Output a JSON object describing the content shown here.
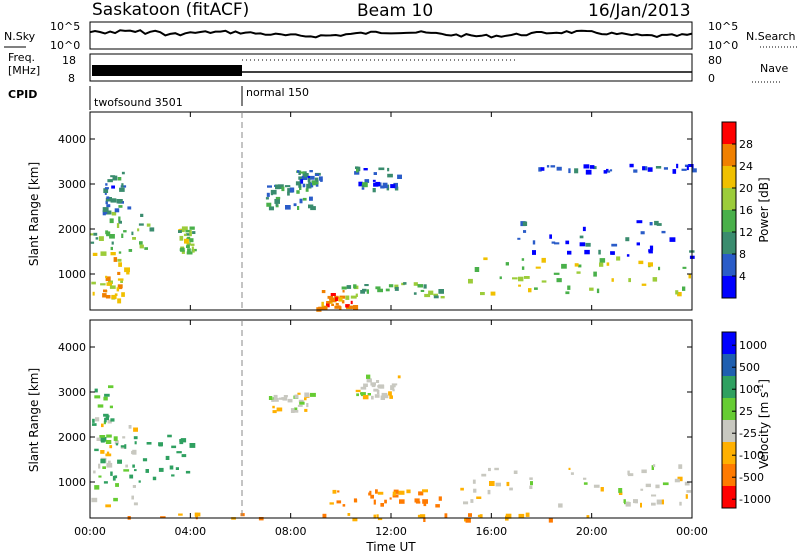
{
  "header": {
    "station": "Saskatoon (fitACF)",
    "beam": "Beam 10",
    "date": "16/Jan/2013"
  },
  "top_panels": {
    "nsky_label": "N.Sky",
    "nsearch_label": "N.Search",
    "nsky_ticks": [
      "10^5",
      "10^0"
    ],
    "nsearch_ticks": [
      "10^5",
      "10^0"
    ],
    "freq_label": "Freq.",
    "freq_unit": "[MHz]",
    "freq_ticks": [
      "18",
      "8"
    ],
    "nave_label": "Nave",
    "nave_ticks": [
      "80",
      "0"
    ],
    "cpid_label": "CPID",
    "cpid_segments": [
      {
        "label": "twofsound 3501",
        "start_hour": 0
      },
      {
        "label": "normal 150",
        "start_hour": 6
      }
    ]
  },
  "colors": {
    "power_scale": [
      "#0000ff",
      "#2a5cc8",
      "#3a8c6e",
      "#49b04a",
      "#9ccc3a",
      "#f0c000",
      "#f08000",
      "#ff0000"
    ],
    "velocity_scale": [
      "#0000ff",
      "#1f5fb0",
      "#2fa060",
      "#66cc33",
      "#c8c8c0",
      "#ffb000",
      "#ff7a00",
      "#ff0000"
    ],
    "ground_scatter": "#c8c8c0"
  },
  "chart_data": [
    {
      "type": "heatmap",
      "name": "power-panel",
      "ylabel": "Slant Range [km]",
      "ylim": [
        200,
        4600
      ],
      "yticks": [
        1000,
        2000,
        3000,
        4000
      ],
      "colorbar": {
        "label": "Power [dB]",
        "range": [
          0,
          32
        ],
        "ticks": [
          4,
          8,
          12,
          16,
          20,
          24,
          28
        ]
      },
      "scatter_regions": [
        {
          "t0": 0.0,
          "t1": 1.5,
          "r0": 400,
          "r1": 1500,
          "power": 22
        },
        {
          "t0": 0.0,
          "t1": 2.5,
          "r0": 1500,
          "r1": 2400,
          "power": 14
        },
        {
          "t0": 0.5,
          "t1": 1.5,
          "r0": 2400,
          "r1": 3300,
          "power": 8
        },
        {
          "t0": 3.5,
          "t1": 4.1,
          "r0": 1500,
          "r1": 2100,
          "power": 16
        },
        {
          "t0": 7.0,
          "t1": 8.8,
          "r0": 2500,
          "r1": 3000,
          "power": 10
        },
        {
          "t0": 8.2,
          "t1": 9.2,
          "r0": 3000,
          "r1": 3350,
          "power": 8
        },
        {
          "t0": 10.5,
          "t1": 12.3,
          "r0": 2900,
          "r1": 3400,
          "power": 8
        },
        {
          "t0": 9.0,
          "t1": 10.5,
          "r0": 250,
          "r1": 650,
          "power": 26
        },
        {
          "t0": 10.0,
          "t1": 14.0,
          "r0": 500,
          "r1": 850,
          "power": 15
        },
        {
          "t0": 14.8,
          "t1": 24.0,
          "r0": 600,
          "r1": 1400,
          "power": 18
        },
        {
          "t0": 17.0,
          "t1": 24.0,
          "r0": 1400,
          "r1": 2200,
          "power": 6
        },
        {
          "t0": 17.0,
          "t1": 24.0,
          "r0": 3300,
          "r1": 3450,
          "power": 4
        }
      ]
    },
    {
      "type": "heatmap",
      "name": "velocity-panel",
      "xlabel": "Time UT",
      "ylabel": "Slant Range [km]",
      "ylim": [
        200,
        4600
      ],
      "yticks": [
        1000,
        2000,
        3000,
        4000
      ],
      "xticks": [
        "00:00",
        "04:00",
        "08:00",
        "12:00",
        "16:00",
        "20:00",
        "00:00"
      ],
      "xlim": [
        0,
        24
      ],
      "colorbar": {
        "label": "Velocity [m s^-1]",
        "ticks": [
          "1000",
          "500",
          "100",
          "25",
          "-25",
          "-100",
          "-500",
          "-1000"
        ]
      },
      "scatter_regions": [
        {
          "t0": 0.0,
          "t1": 1.8,
          "r0": 400,
          "r1": 2600,
          "velocity": 0
        },
        {
          "t0": 0.0,
          "t1": 1.0,
          "r0": 800,
          "r1": 3200,
          "velocity": 100
        },
        {
          "t0": 1.0,
          "t1": 4.0,
          "r0": 1000,
          "r1": 2100,
          "velocity": 200
        },
        {
          "t0": 7.0,
          "t1": 8.8,
          "r0": 2500,
          "r1": 3000,
          "velocity": 0
        },
        {
          "t0": 10.5,
          "t1": 12.3,
          "r0": 2900,
          "r1": 3400,
          "velocity": 0
        },
        {
          "t0": 9.5,
          "t1": 14.0,
          "r0": 500,
          "r1": 850,
          "velocity": -120
        },
        {
          "t0": 14.5,
          "t1": 24.0,
          "r0": 500,
          "r1": 1400,
          "velocity": 0
        },
        {
          "t0": 0.0,
          "t1": 24.0,
          "r0": 200,
          "r1": 320,
          "velocity": -80
        }
      ]
    }
  ]
}
